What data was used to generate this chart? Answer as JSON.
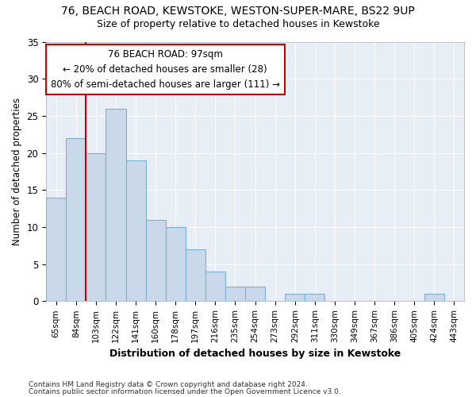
{
  "title1": "76, BEACH ROAD, KEWSTOKE, WESTON-SUPER-MARE, BS22 9UP",
  "title2": "Size of property relative to detached houses in Kewstoke",
  "xlabel": "Distribution of detached houses by size in Kewstoke",
  "ylabel": "Number of detached properties",
  "categories": [
    "65sqm",
    "84sqm",
    "103sqm",
    "122sqm",
    "141sqm",
    "160sqm",
    "178sqm",
    "197sqm",
    "216sqm",
    "235sqm",
    "254sqm",
    "273sqm",
    "292sqm",
    "311sqm",
    "330sqm",
    "349sqm",
    "367sqm",
    "386sqm",
    "405sqm",
    "424sqm",
    "443sqm"
  ],
  "values": [
    14,
    22,
    20,
    26,
    19,
    11,
    10,
    7,
    4,
    2,
    2,
    0,
    1,
    1,
    0,
    0,
    0,
    0,
    0,
    1,
    0
  ],
  "bar_color": "#c9d9ea",
  "bar_edgecolor": "#7bafd4",
  "annotation_label": "76 BEACH ROAD: 97sqm",
  "annotation_line1": "← 20% of detached houses are smaller (28)",
  "annotation_line2": "80% of semi-detached houses are larger (111) →",
  "annotation_box_color": "#ffffff",
  "annotation_box_edgecolor": "#cc0000",
  "vline_color": "#cc0000",
  "vline_x_idx": 2,
  "ylim": [
    0,
    35
  ],
  "yticks": [
    0,
    5,
    10,
    15,
    20,
    25,
    30,
    35
  ],
  "footer1": "Contains HM Land Registry data © Crown copyright and database right 2024.",
  "footer2": "Contains public sector information licensed under the Open Government Licence v3.0.",
  "bg_color": "#ffffff",
  "plot_bg_color": "#e8eef5"
}
